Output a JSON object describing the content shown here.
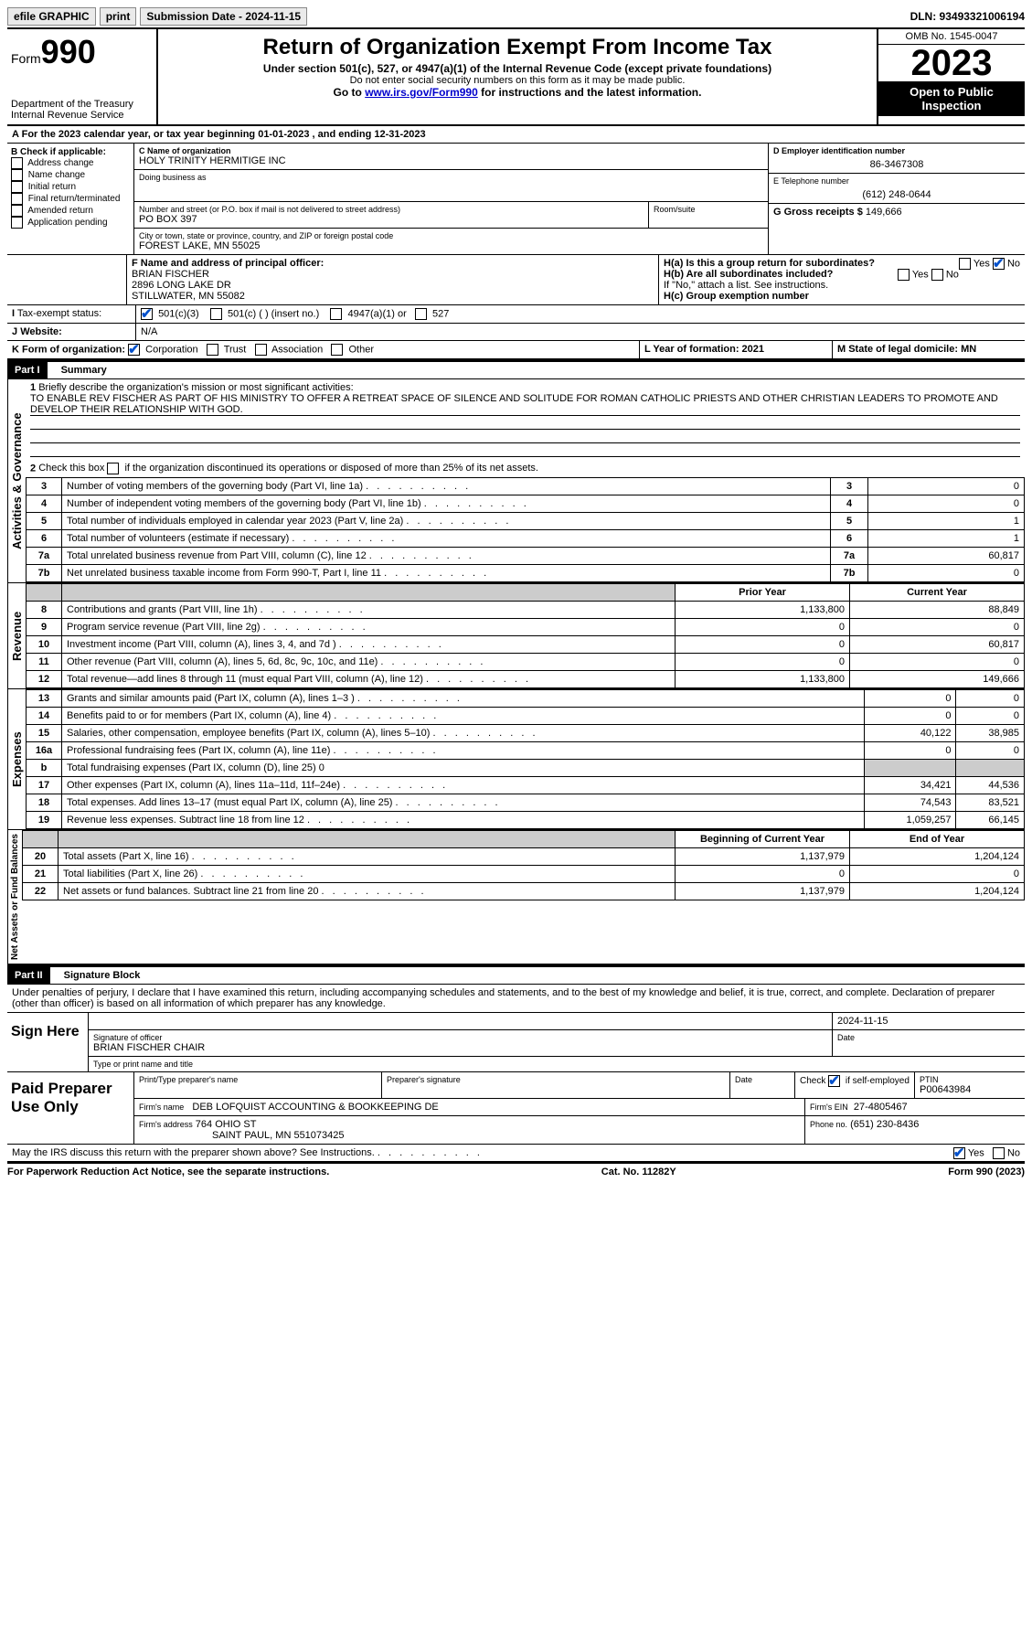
{
  "topbar": {
    "efile": "efile GRAPHIC",
    "print": "print",
    "submission_label": "Submission Date - 2024-11-15",
    "dln_label": "DLN: 93493321006194"
  },
  "header": {
    "form_word": "Form",
    "form_number": "990",
    "dept": "Department of the Treasury",
    "irs": "Internal Revenue Service",
    "title": "Return of Organization Exempt From Income Tax",
    "subtitle": "Under section 501(c), 527, or 4947(a)(1) of the Internal Revenue Code (except private foundations)",
    "ssn_note": "Do not enter social security numbers on this form as it may be made public.",
    "goto": "Go to ",
    "goto_link": "www.irs.gov/Form990",
    "goto_after": " for instructions and the latest information.",
    "omb": "OMB No. 1545-0047",
    "year": "2023",
    "open": "Open to Public Inspection"
  },
  "lineA": "For the 2023 calendar year, or tax year beginning 01-01-2023    , and ending 12-31-2023",
  "sectionB": {
    "label": "B Check if applicable:",
    "items": [
      "Address change",
      "Name change",
      "Initial return",
      "Final return/terminated",
      "Amended return",
      "Application pending"
    ]
  },
  "sectionC": {
    "name_label": "C Name of organization",
    "name": "HOLY TRINITY HERMITIGE INC",
    "dba_label": "Doing business as",
    "street_label": "Number and street (or P.O. box if mail is not delivered to street address)",
    "room_label": "Room/suite",
    "street": "PO BOX 397",
    "city_label": "City or town, state or province, country, and ZIP or foreign postal code",
    "city": "FOREST LAKE, MN  55025"
  },
  "sectionD": {
    "label": "D Employer identification number",
    "value": "86-3467308"
  },
  "sectionE": {
    "label": "E Telephone number",
    "value": "(612) 248-0644"
  },
  "sectionG": {
    "label": "G Gross receipts $",
    "value": "149,666"
  },
  "sectionF": {
    "label": "F  Name and address of principal officer:",
    "name": "BRIAN FISCHER",
    "addr1": "2896 LONG LAKE DR",
    "addr2": "STILLWATER, MN  55082"
  },
  "sectionH": {
    "a": "H(a)  Is this a group return for subordinates?",
    "b": "H(b)  Are all subordinates included?",
    "b_note": "If \"No,\" attach a list. See instructions.",
    "c": "H(c)  Group exemption number"
  },
  "sectionI": {
    "label": "Tax-exempt status:",
    "opts": [
      "501(c)(3)",
      "501(c) (   ) (insert no.)",
      "4947(a)(1) or",
      "527"
    ]
  },
  "sectionJ": {
    "label": "Website:",
    "value": "N/A"
  },
  "sectionK": {
    "label": "K Form of organization:",
    "opts": [
      "Corporation",
      "Trust",
      "Association",
      "Other"
    ]
  },
  "sectionL": {
    "label": "L Year of formation: 2021"
  },
  "sectionM": {
    "label": "M State of legal domicile: MN"
  },
  "part1": {
    "header": "Part I",
    "title": "Summary",
    "line1_label": "Briefly describe the organization's mission or most significant activities:",
    "line1_text": "TO ENABLE REV FISCHER AS PART OF HIS MINISTRY TO OFFER A RETREAT SPACE OF SILENCE AND SOLITUDE FOR ROMAN CATHOLIC PRIESTS AND OTHER CHRISTIAN LEADERS TO PROMOTE AND DEVELOP THEIR RELATIONSHIP WITH GOD.",
    "line2": "Check this box          if the organization discontinued its operations or disposed of more than 25% of its net assets.",
    "gov_labels": {
      "3": "Number of voting members of the governing body (Part VI, line 1a)",
      "4": "Number of independent voting members of the governing body (Part VI, line 1b)",
      "5": "Total number of individuals employed in calendar year 2023 (Part V, line 2a)",
      "6": "Total number of volunteers (estimate if necessary)",
      "7a": "Total unrelated business revenue from Part VIII, column (C), line 12",
      "7b": "Net unrelated business taxable income from Form 990-T, Part I, line 11"
    },
    "gov_values": {
      "3": "0",
      "4": "0",
      "5": "1",
      "6": "1",
      "7a": "60,817",
      "7b": "0"
    },
    "col_headers": {
      "prior": "Prior Year",
      "current": "Current Year"
    },
    "revenue": [
      {
        "n": "8",
        "label": "Contributions and grants (Part VIII, line 1h)",
        "prior": "1,133,800",
        "current": "88,849"
      },
      {
        "n": "9",
        "label": "Program service revenue (Part VIII, line 2g)",
        "prior": "0",
        "current": "0"
      },
      {
        "n": "10",
        "label": "Investment income (Part VIII, column (A), lines 3, 4, and 7d )",
        "prior": "0",
        "current": "60,817"
      },
      {
        "n": "11",
        "label": "Other revenue (Part VIII, column (A), lines 5, 6d, 8c, 9c, 10c, and 11e)",
        "prior": "0",
        "current": "0"
      },
      {
        "n": "12",
        "label": "Total revenue—add lines 8 through 11 (must equal Part VIII, column (A), line 12)",
        "prior": "1,133,800",
        "current": "149,666"
      }
    ],
    "expenses": [
      {
        "n": "13",
        "label": "Grants and similar amounts paid (Part IX, column (A), lines 1–3 )",
        "prior": "0",
        "current": "0"
      },
      {
        "n": "14",
        "label": "Benefits paid to or for members (Part IX, column (A), line 4)",
        "prior": "0",
        "current": "0"
      },
      {
        "n": "15",
        "label": "Salaries, other compensation, employee benefits (Part IX, column (A), lines 5–10)",
        "prior": "40,122",
        "current": "38,985"
      },
      {
        "n": "16a",
        "label": "Professional fundraising fees (Part IX, column (A), line 11e)",
        "prior": "0",
        "current": "0"
      },
      {
        "n": "b",
        "label": "Total fundraising expenses (Part IX, column (D), line 25) 0",
        "prior": "",
        "current": "",
        "gray": true
      },
      {
        "n": "17",
        "label": "Other expenses (Part IX, column (A), lines 11a–11d, 11f–24e)",
        "prior": "34,421",
        "current": "44,536"
      },
      {
        "n": "18",
        "label": "Total expenses. Add lines 13–17 (must equal Part IX, column (A), line 25)",
        "prior": "74,543",
        "current": "83,521"
      },
      {
        "n": "19",
        "label": "Revenue less expenses. Subtract line 18 from line 12",
        "prior": "1,059,257",
        "current": "66,145"
      }
    ],
    "net_headers": {
      "begin": "Beginning of Current Year",
      "end": "End of Year"
    },
    "net": [
      {
        "n": "20",
        "label": "Total assets (Part X, line 16)",
        "begin": "1,137,979",
        "end": "1,204,124"
      },
      {
        "n": "21",
        "label": "Total liabilities (Part X, line 26)",
        "begin": "0",
        "end": "0"
      },
      {
        "n": "22",
        "label": "Net assets or fund balances. Subtract line 21 from line 20",
        "begin": "1,137,979",
        "end": "1,204,124"
      }
    ],
    "vert_gov": "Activities & Governance",
    "vert_rev": "Revenue",
    "vert_exp": "Expenses",
    "vert_net": "Net Assets or Fund Balances"
  },
  "part2": {
    "header": "Part II",
    "title": "Signature Block",
    "perjury": "Under penalties of perjury, I declare that I have examined this return, including accompanying schedules and statements, and to the best of my knowledge and belief, it is true, correct, and complete. Declaration of preparer (other than officer) is based on all information of which preparer has any knowledge.",
    "sign_here": "Sign Here",
    "sig_officer": "Signature of officer",
    "sig_date": "2024-11-15",
    "officer_name": "BRIAN FISCHER  CHAIR",
    "type_name": "Type or print name and title",
    "paid_prep": "Paid Preparer Use Only",
    "prep_name_label": "Print/Type preparer's name",
    "prep_sig_label": "Preparer's signature",
    "date_label": "Date",
    "check_self": "Check           if self-employed",
    "ptin_label": "PTIN",
    "ptin": "P00643984",
    "firm_name_label": "Firm's name",
    "firm_name": "DEB LOFQUIST ACCOUNTING & BOOKKEEPING DE",
    "firm_ein_label": "Firm's EIN",
    "firm_ein": "27-4805467",
    "firm_addr_label": "Firm's address",
    "firm_addr1": "764 OHIO ST",
    "firm_addr2": "SAINT PAUL, MN  551073425",
    "phone_label": "Phone no.",
    "phone": "(651) 230-8436",
    "discuss": "May the IRS discuss this return with the preparer shown above? See Instructions.",
    "yes": "Yes",
    "no": "No"
  },
  "footer": {
    "paperwork": "For Paperwork Reduction Act Notice, see the separate instructions.",
    "catno": "Cat. No. 11282Y",
    "formref": "Form 990 (2023)"
  }
}
